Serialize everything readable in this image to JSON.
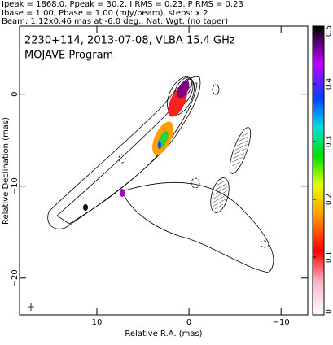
{
  "chart_data": {
    "type": "contour_map",
    "header": [
      "Ipeak = 1868.0, Ppeak = 30.2, I RMS = 0.23, P RMS = 0.23",
      "Ibase = 1.00, Pbase = 1.00 (mJy/beam), steps: x 2",
      "Beam: 1.12x0.46 mas at -6.0 deg., Nat. Wgt. (no taper)"
    ],
    "annotations": [
      "2230+114, 2013-07-08, VLBA 15.4 GHz",
      "MOJAVE Program"
    ],
    "xlabel": "Relative R.A. (mas)",
    "ylabel": "Relative Declination (mas)",
    "xlim": [
      18.4,
      -12.9
    ],
    "ylim": [
      -24,
      7.4
    ],
    "xticks": [
      10,
      0,
      {
        "value": -10,
        "label": "−10"
      }
    ],
    "yticks": [
      0,
      {
        "value": -10,
        "label": "−10"
      },
      {
        "value": -20,
        "label": "−20"
      }
    ],
    "colorbar": {
      "ylim": [
        0,
        0.5
      ],
      "yticks": [
        0,
        0.1,
        0.2,
        0.3,
        0.4,
        0.5
      ]
    }
  }
}
